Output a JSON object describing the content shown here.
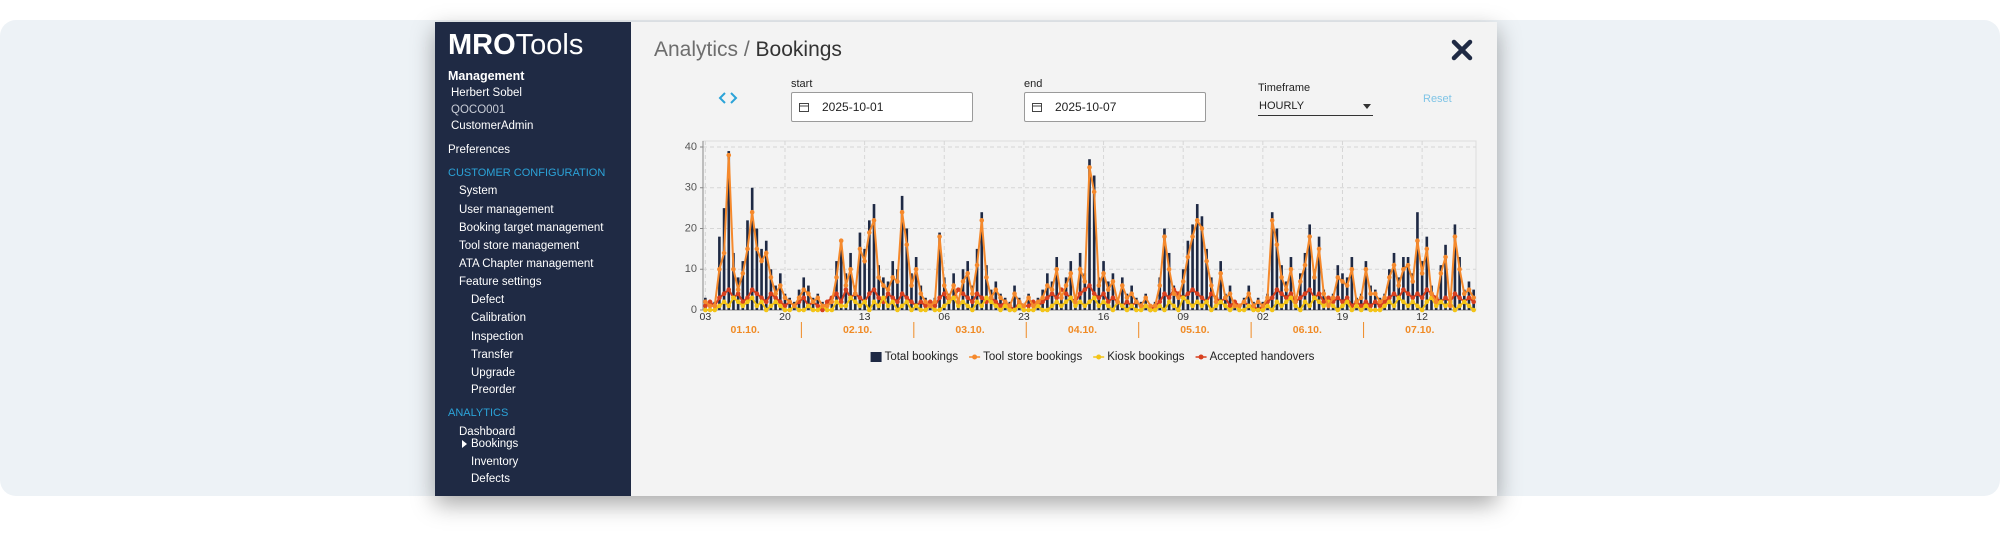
{
  "sidebar": {
    "logo_bold": "MRO",
    "logo_light": "Tools",
    "section": "Management",
    "user": "Herbert Sobel",
    "org": "QOCO001",
    "role": "CustomerAdmin",
    "preferences": "Preferences",
    "config_title": "CUSTOMER CONFIGURATION",
    "config_items": [
      "System",
      "User management",
      "Booking target management",
      "Tool store management",
      "ATA Chapter management",
      "Feature settings"
    ],
    "feature_items": [
      "Defect",
      "Calibration",
      "Inspection",
      "Transfer",
      "Upgrade",
      "Preorder"
    ],
    "analytics_title": "ANALYTICS",
    "analytics_items": [
      "Dashboard",
      "Bookings",
      "Inventory",
      "Defects"
    ]
  },
  "header": {
    "breadcrumb": "Analytics /",
    "title": "Bookings"
  },
  "filters": {
    "start_label": "start",
    "start_value": "2025-10-01",
    "end_label": "end",
    "end_value": "2025-10-07",
    "timeframe_label": "Timeframe",
    "timeframe_value": "HOURLY",
    "reset": "Reset"
  },
  "chart_data": {
    "type": "combo",
    "categories": [
      "03",
      null,
      null,
      null,
      null,
      null,
      null,
      null,
      null,
      null,
      null,
      null,
      null,
      null,
      null,
      null,
      null,
      "20",
      null,
      null,
      null,
      null,
      null,
      null,
      null,
      null,
      null,
      null,
      null,
      null,
      null,
      null,
      null,
      null,
      "13",
      null,
      null,
      null,
      null,
      null,
      null,
      null,
      null,
      null,
      null,
      null,
      null,
      null,
      null,
      null,
      null,
      "06",
      null,
      null,
      null,
      null,
      null,
      null,
      null,
      null,
      null,
      null,
      null,
      null,
      null,
      null,
      null,
      null,
      "23",
      null,
      null,
      null,
      null,
      null,
      null,
      null,
      null,
      null,
      null,
      null,
      null,
      null,
      null,
      null,
      null,
      "16",
      null,
      null,
      null,
      null,
      null,
      null,
      null,
      null,
      null,
      null,
      null,
      null,
      null,
      null,
      null,
      null,
      "09",
      null,
      null,
      null,
      null,
      null,
      null,
      null,
      null,
      null,
      null,
      null,
      null,
      null,
      null,
      null,
      null,
      "02",
      null,
      null,
      null,
      null,
      null,
      null,
      null,
      null,
      null,
      null,
      null,
      null,
      null,
      null,
      null,
      null,
      "19",
      null,
      null,
      null,
      null,
      null,
      null,
      null,
      null,
      null,
      null,
      null,
      null,
      null,
      null,
      null,
      null,
      "12",
      null,
      null,
      null,
      null,
      null,
      null,
      null,
      null,
      null,
      null,
      null
    ],
    "day_labels": [
      "01.10.",
      "02.10.",
      "03.10.",
      "04.10.",
      "05.10.",
      "06.10.",
      "07.10."
    ],
    "ylim": [
      0,
      40
    ],
    "yticks": [
      0,
      10,
      20,
      30,
      40
    ],
    "grid": true,
    "series": [
      {
        "name": "Total bookings",
        "kind": "bar",
        "color": "#1e2944",
        "values": [
          3,
          1,
          2,
          18,
          25,
          39,
          14,
          8,
          12,
          22,
          30,
          20,
          15,
          17,
          10,
          6,
          9,
          4,
          3,
          2,
          5,
          8,
          6,
          3,
          4,
          2,
          1,
          3,
          12,
          17,
          9,
          14,
          6,
          19,
          15,
          22,
          26,
          11,
          8,
          7,
          12,
          10,
          28,
          20,
          9,
          13,
          6,
          3,
          2,
          3,
          19,
          8,
          4,
          9,
          3,
          10,
          12,
          6,
          15,
          24,
          11,
          5,
          7,
          4,
          3,
          2,
          6,
          3,
          1,
          4,
          2,
          3,
          5,
          9,
          7,
          13,
          4,
          8,
          12,
          3,
          14,
          9,
          37,
          33,
          8,
          12,
          7,
          9,
          3,
          8,
          4,
          6,
          3,
          2,
          4,
          1,
          2,
          8,
          20,
          14,
          6,
          4,
          10,
          17,
          21,
          26,
          23,
          15,
          8,
          3,
          12,
          4,
          6,
          2,
          1,
          3,
          6,
          2,
          3,
          2,
          4,
          24,
          20,
          11,
          7,
          13,
          3,
          9,
          14,
          21,
          10,
          18,
          5,
          2,
          4,
          11,
          9,
          8,
          13,
          3,
          4,
          12,
          6,
          5,
          3,
          4,
          10,
          14,
          8,
          13,
          13,
          9,
          24,
          12,
          18,
          6,
          3,
          11,
          16,
          2,
          21,
          13,
          5,
          7,
          5
        ]
      },
      {
        "name": "Tool store bookings",
        "kind": "line",
        "color": "#f5892c",
        "values": [
          2,
          1,
          1,
          10,
          14,
          38,
          10,
          5,
          9,
          15,
          24,
          15,
          12,
          14,
          8,
          4,
          6,
          3,
          2,
          1,
          3,
          5,
          4,
          2,
          3,
          1,
          1,
          2,
          8,
          17,
          6,
          10,
          4,
          15,
          12,
          19,
          22,
          8,
          6,
          5,
          8,
          7,
          24,
          16,
          6,
          10,
          4,
          2,
          1,
          2,
          18,
          6,
          3,
          6,
          2,
          7,
          9,
          4,
          11,
          22,
          8,
          3,
          5,
          3,
          2,
          1,
          4,
          2,
          1,
          3,
          1,
          2,
          3,
          6,
          5,
          10,
          3,
          6,
          9,
          2,
          10,
          7,
          35,
          29,
          6,
          9,
          5,
          7,
          2,
          6,
          3,
          4,
          2,
          1,
          3,
          1,
          1,
          6,
          18,
          10,
          4,
          3,
          7,
          13,
          18,
          22,
          20,
          12,
          6,
          2,
          9,
          3,
          4,
          1,
          1,
          2,
          4,
          1,
          2,
          1,
          3,
          22,
          16,
          8,
          5,
          10,
          2,
          7,
          11,
          18,
          8,
          15,
          4,
          1,
          3,
          8,
          7,
          6,
          10,
          2,
          3,
          10,
          4,
          4,
          2,
          3,
          8,
          11,
          6,
          10,
          11,
          7,
          17,
          9,
          15,
          4,
          2,
          9,
          13,
          1,
          18,
          10,
          4,
          5,
          3
        ]
      },
      {
        "name": "Kiosk bookings",
        "kind": "line",
        "color": "#f3c417",
        "values": [
          0,
          0,
          0,
          1,
          2,
          1,
          3,
          2,
          1,
          2,
          3,
          1,
          2,
          0,
          1,
          2,
          1,
          0,
          0,
          1,
          0,
          0,
          1,
          0,
          0,
          1,
          0,
          0,
          2,
          1,
          1,
          3,
          2,
          1,
          2,
          0,
          2,
          1,
          3,
          1,
          2,
          0,
          1,
          2,
          0,
          1,
          0,
          0,
          1,
          0,
          0,
          1,
          2,
          3,
          1,
          2,
          1,
          0,
          2,
          1,
          3,
          2,
          1,
          0,
          1,
          0,
          0,
          1,
          0,
          0,
          0,
          1,
          0,
          0,
          1,
          2,
          1,
          2,
          3,
          1,
          2,
          1,
          2,
          3,
          1,
          2,
          1,
          0,
          2,
          1,
          0,
          1,
          0,
          0,
          1,
          0,
          0,
          1,
          0,
          2,
          1,
          0,
          3,
          2,
          1,
          2,
          1,
          2,
          0,
          1,
          2,
          1,
          0,
          1,
          0,
          0,
          1,
          0,
          0,
          0,
          1,
          0,
          2,
          1,
          2,
          3,
          1,
          0,
          2,
          1,
          3,
          2,
          1,
          2,
          1,
          0,
          1,
          2,
          0,
          1,
          0,
          1,
          0,
          0,
          0,
          1,
          2,
          1,
          3,
          2,
          1,
          2,
          1,
          0,
          2,
          3,
          1,
          2,
          1,
          2,
          0,
          1,
          2,
          1,
          0
        ]
      },
      {
        "name": "Accepted handovers",
        "kind": "line",
        "color": "#d8401f",
        "values": [
          1,
          2,
          1,
          3,
          4,
          5,
          3,
          4,
          2,
          3,
          5,
          4,
          3,
          2,
          4,
          3,
          2,
          1,
          2,
          1,
          2,
          3,
          1,
          2,
          1,
          0,
          2,
          3,
          4,
          2,
          5,
          3,
          4,
          3,
          2,
          4,
          5,
          3,
          2,
          4,
          3,
          2,
          4,
          3,
          2,
          1,
          2,
          1,
          2,
          1,
          3,
          4,
          2,
          3,
          5,
          4,
          3,
          2,
          4,
          3,
          2,
          3,
          2,
          1,
          2,
          1,
          0,
          2,
          1,
          1,
          2,
          1,
          2,
          3,
          4,
          3,
          5,
          4,
          3,
          2,
          4,
          5,
          6,
          4,
          3,
          4,
          2,
          3,
          2,
          1,
          2,
          1,
          2,
          1,
          1,
          0,
          1,
          2,
          4,
          3,
          5,
          4,
          3,
          4,
          5,
          4,
          3,
          2,
          4,
          3,
          2,
          3,
          1,
          2,
          1,
          2,
          1,
          1,
          0,
          1,
          2,
          3,
          5,
          4,
          3,
          4,
          2,
          3,
          4,
          5,
          3,
          4,
          2,
          3,
          2,
          3,
          2,
          3,
          1,
          2,
          1,
          2,
          1,
          2,
          1,
          2,
          3,
          4,
          3,
          5,
          4,
          3,
          4,
          3,
          5,
          4,
          3,
          2,
          3,
          2,
          4,
          3,
          2,
          3,
          2
        ]
      }
    ]
  }
}
